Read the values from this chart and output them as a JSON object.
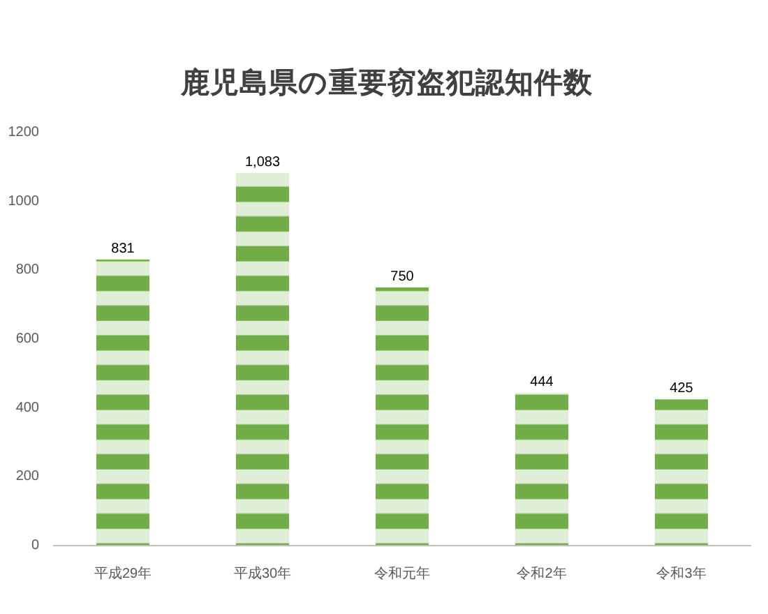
{
  "chart_data": {
    "type": "bar",
    "title": "鹿児島県の重要窃盗犯認知件数",
    "categories": [
      "平成29年",
      "平成30年",
      "令和元年",
      "令和2年",
      "令和3年"
    ],
    "values": [
      831,
      1083,
      750,
      444,
      425
    ],
    "color": "#70ad47",
    "value_labels": [
      "831",
      "1,083",
      "750",
      "444",
      "425"
    ],
    "ylim": [
      0,
      1200
    ],
    "yticks": [
      0,
      200,
      400,
      600,
      800,
      1000,
      1200
    ]
  }
}
